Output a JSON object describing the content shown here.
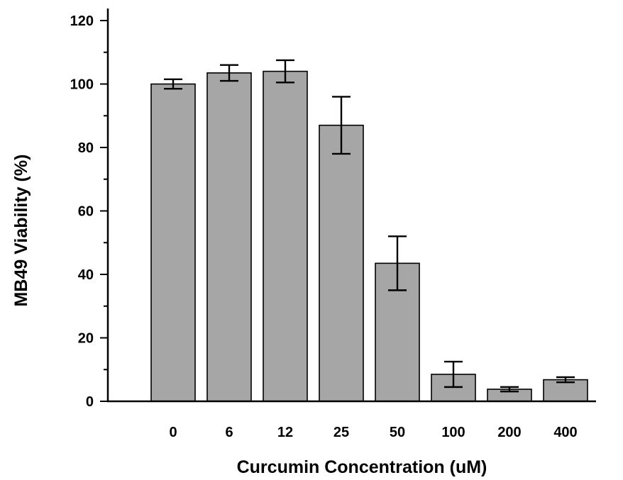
{
  "chart_data": {
    "type": "bar",
    "title": "",
    "xlabel": "Curcumin Concentration (uM)",
    "ylabel": "MB49 Viability (%)",
    "categories": [
      "0",
      "6",
      "12",
      "25",
      "50",
      "100",
      "200",
      "400"
    ],
    "series": [
      {
        "values": [
          100,
          103.5,
          104,
          87,
          43.5,
          8.5,
          3.8,
          6.8
        ],
        "error": [
          1.5,
          2.5,
          3.5,
          9,
          8.5,
          4,
          0.7,
          0.8
        ]
      }
    ],
    "ylim": [
      0,
      120
    ],
    "yticks": [
      "0",
      "20",
      "40",
      "60",
      "80",
      "100",
      "120"
    ],
    "error_bars": true,
    "grid": false,
    "legend": "none",
    "bar_color": "#a6a6a6"
  }
}
